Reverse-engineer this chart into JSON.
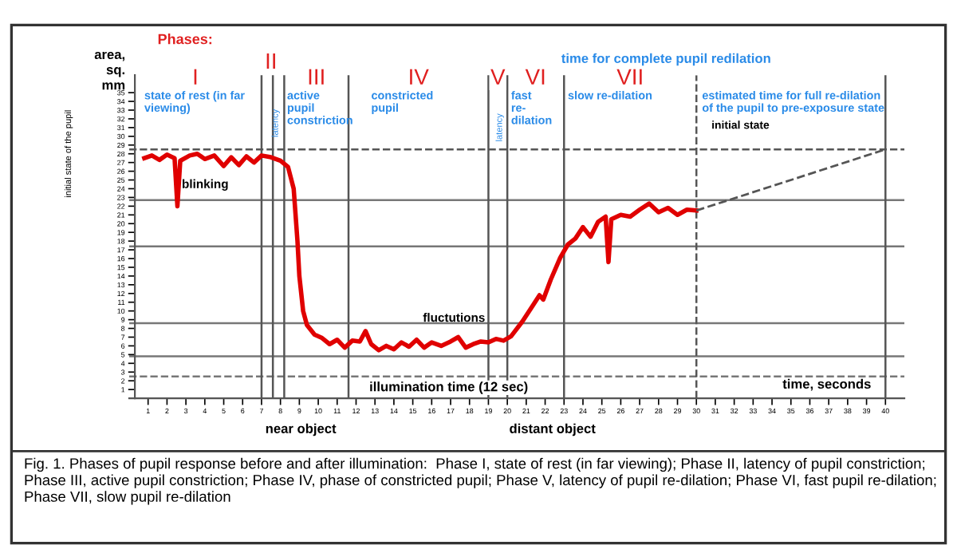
{
  "chart_data": {
    "type": "line",
    "xlabel": "time, seconds",
    "ylabel": "area,\nsq.\nmm",
    "xlim": [
      0,
      41
    ],
    "ylim": [
      0,
      37
    ],
    "xticks": [
      1,
      2,
      3,
      4,
      5,
      6,
      7,
      8,
      9,
      10,
      11,
      12,
      13,
      14,
      15,
      16,
      17,
      18,
      19,
      20,
      21,
      22,
      23,
      24,
      25,
      26,
      27,
      28,
      29,
      30,
      31,
      32,
      33,
      34,
      35,
      36,
      37,
      38,
      39,
      40
    ],
    "yticks": [
      1,
      2,
      3,
      4,
      5,
      6,
      7,
      8,
      9,
      10,
      11,
      12,
      13,
      14,
      15,
      16,
      17,
      18,
      19,
      20,
      21,
      22,
      23,
      24,
      25,
      26,
      27,
      28,
      29,
      30,
      31,
      32,
      33,
      34,
      35
    ],
    "grid": false,
    "series": [
      {
        "color": "#e00000",
        "x": [
          0.8,
          1.2,
          1.6,
          2.0,
          2.4,
          2.55,
          2.7,
          3.2,
          3.6,
          4.0,
          4.5,
          5.0,
          5.4,
          5.8,
          6.2,
          6.6,
          7.0,
          7.5,
          8.0,
          8.4,
          8.7,
          8.9,
          9.0,
          9.2,
          9.4,
          9.8,
          10.2,
          10.6,
          11.0,
          11.4,
          11.8,
          12.2,
          12.5,
          12.8,
          13.2,
          13.6,
          14.0,
          14.4,
          14.8,
          15.2,
          15.6,
          16.0,
          16.5,
          17.0,
          17.4,
          17.8,
          18.2,
          18.6,
          19.0,
          19.4,
          19.8,
          20.2,
          20.8,
          21.4,
          21.7,
          21.9,
          22.3,
          22.8,
          23.2,
          23.6,
          24.0,
          24.4,
          24.8,
          25.2,
          25.35,
          25.5,
          26.0,
          26.5,
          27.0,
          27.5,
          28.0,
          28.5,
          29.0,
          29.5,
          30.0
        ],
        "values": [
          27.5,
          27.8,
          27.3,
          27.9,
          27.5,
          22,
          27.2,
          27.8,
          28.0,
          27.4,
          27.8,
          26.6,
          27.6,
          26.7,
          27.7,
          27.0,
          27.8,
          27.6,
          27.2,
          26.5,
          24,
          18,
          14,
          10,
          8.4,
          7.3,
          6.9,
          6.2,
          6.7,
          5.8,
          6.6,
          6.5,
          7.7,
          6.2,
          5.5,
          6.0,
          5.6,
          6.4,
          5.9,
          6.7,
          5.8,
          6.4,
          6.0,
          6.5,
          7.0,
          5.8,
          6.2,
          6.5,
          6.4,
          6.8,
          6.6,
          7.1,
          8.8,
          10.8,
          11.8,
          11.3,
          13.6,
          16.1,
          17.6,
          18.3,
          19.6,
          18.5,
          20.2,
          20.8,
          15.6,
          20.5,
          21.0,
          20.8,
          21.6,
          22.3,
          21.3,
          21.8,
          21.0,
          21.6,
          21.5
        ]
      },
      {
        "color": "#555555",
        "line_style": "dashed",
        "x": [
          30,
          40
        ],
        "values": [
          21.5,
          28.5
        ]
      }
    ],
    "ref_lines": [
      {
        "axis": "y",
        "value": 28.5,
        "color": "#555555",
        "line_style": "dashed"
      },
      {
        "axis": "y",
        "value": 22.7,
        "color": "#777777",
        "line_style": "solid"
      },
      {
        "axis": "y",
        "value": 17.4,
        "color": "#777777",
        "line_style": "solid"
      },
      {
        "axis": "y",
        "value": 8.6,
        "color": "#777777",
        "line_style": "solid"
      },
      {
        "axis": "y",
        "value": 4.8,
        "color": "#777777",
        "line_style": "solid"
      },
      {
        "axis": "y",
        "value": 2.5,
        "color": "#777777",
        "line_style": "dashed"
      },
      {
        "axis": "x",
        "value": 7,
        "color": "#555555",
        "line_style": "solid"
      },
      {
        "axis": "x",
        "value": 7.6,
        "color": "#555555",
        "line_style": "solid"
      },
      {
        "axis": "x",
        "value": 8.2,
        "color": "#555555",
        "line_style": "solid"
      },
      {
        "axis": "x",
        "value": 11.6,
        "color": "#555555",
        "line_style": "solid"
      },
      {
        "axis": "x",
        "value": 19,
        "color": "#555555",
        "line_style": "solid"
      },
      {
        "axis": "x",
        "value": 20,
        "color": "#555555",
        "line_style": "solid"
      },
      {
        "axis": "x",
        "value": 23,
        "color": "#555555",
        "line_style": "solid"
      },
      {
        "axis": "x",
        "value": 30,
        "color": "#555555",
        "line_style": "dashed"
      },
      {
        "axis": "x",
        "value": 40,
        "color": "#555555",
        "line_style": "solid"
      }
    ],
    "annotations": [
      "Phases:",
      "I",
      "II",
      "III",
      "IV",
      "V",
      "VI",
      "VII",
      "state of rest (in far\nviewing)",
      "active\npupil\nconstriction",
      "constricted\npupil",
      "fast\nre-\ndilation",
      "slow re-dilation",
      "time for complete pupil redilation",
      "estimated time for full re-dilation\nof the pupil to pre-exposure state",
      "initial state",
      "latency",
      "latency",
      {
        "text": "blinking",
        "x": 2.55,
        "y": 22
      },
      {
        "text": "fluctutions",
        "x": 15.3,
        "y": 6.7
      },
      "illumination time (12 sec)",
      "near object",
      "distant object",
      "initial state of the pupil",
      "Fig. 1. Phases of pupil response before and after illumination:  Phase I, state of rest (in far viewing); Phase II, latency of pupil constriction; Phase III, active pupil constriction; Phase IV, phase of constricted pupil; Phase V, latency of pupil re-dilation; Phase VI, fast pupil re-dilation; Phase VII, slow pupil re-dilation"
    ]
  }
}
